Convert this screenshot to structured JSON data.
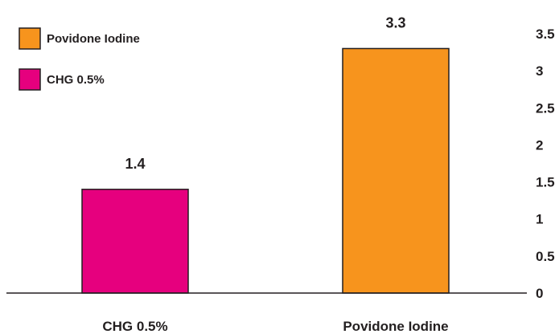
{
  "chart_data": {
    "type": "bar",
    "categories": [
      "CHG 0.5%",
      "Povidone Iodine"
    ],
    "values": [
      1.4,
      3.3
    ],
    "data_labels": [
      "1.4",
      "3.3"
    ],
    "colors": [
      "#e6007e",
      "#f7941d"
    ],
    "edge_color": "#231f20",
    "y_ticks": [
      "0",
      "0.5",
      "1",
      "1.5",
      "2",
      "2.5",
      "3",
      "3.5"
    ],
    "ylim": [
      0,
      3.5
    ],
    "y_axis_position": "right",
    "grid": false,
    "legend_position": "top-left",
    "legend": [
      {
        "label": "Povidone Iodine",
        "color": "#f7941d"
      },
      {
        "label": "CHG 0.5%",
        "color": "#e6007e"
      }
    ]
  }
}
